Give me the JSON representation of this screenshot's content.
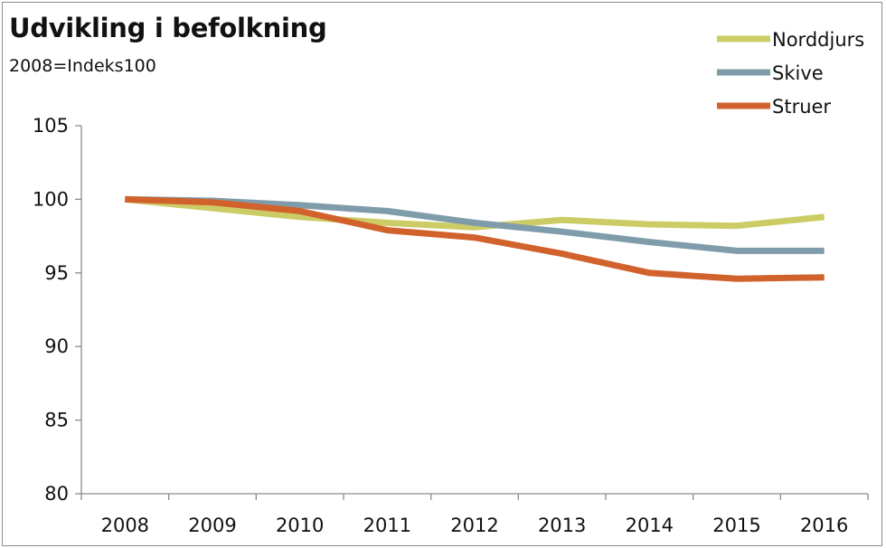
{
  "chart_data": {
    "type": "line",
    "title": "Udvikling i befolkning",
    "subtitle": "2008=Indeks100",
    "xlabel": "",
    "ylabel": "",
    "ylim": [
      80,
      105
    ],
    "yticks": [
      "80",
      "85",
      "90",
      "95",
      "100",
      "105"
    ],
    "categories": [
      "2008",
      "2009",
      "2010",
      "2011",
      "2012",
      "2013",
      "2014",
      "2015",
      "2016"
    ],
    "grid": false,
    "legend": "top-right",
    "series": [
      {
        "name": "Norddjurs",
        "color": "#cccc66",
        "values": [
          100,
          99.4,
          98.8,
          98.4,
          98.1,
          98.6,
          98.3,
          98.2,
          98.8
        ]
      },
      {
        "name": "Skive",
        "color": "#7f9cab",
        "values": [
          100,
          99.9,
          99.6,
          99.2,
          98.4,
          97.8,
          97.1,
          96.5,
          96.5
        ]
      },
      {
        "name": "Struer",
        "color": "#d2622c",
        "values": [
          100,
          99.8,
          99.2,
          97.9,
          97.4,
          96.3,
          95.0,
          94.6,
          94.7
        ]
      }
    ]
  }
}
